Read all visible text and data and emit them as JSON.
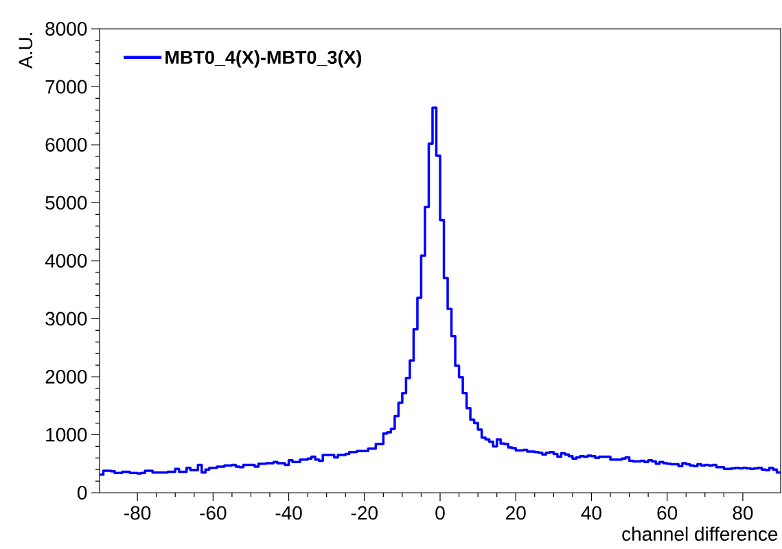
{
  "chart_data": {
    "type": "histogram",
    "xlabel": "channel difference",
    "ylabel": "A.U.",
    "bins": [
      -90,
      -89,
      -88,
      -87,
      -86,
      -85,
      -84,
      -83,
      -82,
      -81,
      -80,
      -79,
      -78,
      -77,
      -76,
      -75,
      -74,
      -73,
      -72,
      -71,
      -70,
      -69,
      -68,
      -67,
      -66,
      -65,
      -64,
      -63,
      -62,
      -61,
      -60,
      -59,
      -58,
      -57,
      -56,
      -55,
      -54,
      -53,
      -52,
      -51,
      -50,
      -49,
      -48,
      -47,
      -46,
      -45,
      -44,
      -43,
      -42,
      -41,
      -40,
      -39,
      -38,
      -37,
      -36,
      -35,
      -34,
      -33,
      -32,
      -31,
      -30,
      -29,
      -28,
      -27,
      -26,
      -25,
      -24,
      -23,
      -22,
      -21,
      -20,
      -19,
      -18,
      -17,
      -16,
      -15,
      -14,
      -13,
      -12,
      -11,
      -10,
      -9,
      -8,
      -7,
      -6,
      -5,
      -4,
      -3,
      -2,
      -1,
      0,
      1,
      2,
      3,
      4,
      5,
      6,
      7,
      8,
      9,
      10,
      11,
      12,
      13,
      14,
      15,
      16,
      17,
      18,
      19,
      20,
      21,
      22,
      23,
      24,
      25,
      26,
      27,
      28,
      29,
      30,
      31,
      32,
      33,
      34,
      35,
      36,
      37,
      38,
      39,
      40,
      41,
      42,
      43,
      44,
      45,
      46,
      47,
      48,
      49,
      50,
      51,
      52,
      53,
      54,
      55,
      56,
      57,
      58,
      59,
      60,
      61,
      62,
      63,
      64,
      65,
      66,
      67,
      68,
      69,
      70,
      71,
      72,
      73,
      74,
      75,
      76,
      77,
      78,
      79,
      80,
      81,
      82,
      83,
      84,
      85,
      86,
      87,
      88,
      89,
      90
    ],
    "series": [
      {
        "name": "MBT0_4(X)-MBT0_3(X)",
        "color": "#0000ff",
        "values": [
          310,
          380,
          380,
          370,
          340,
          340,
          360,
          360,
          340,
          340,
          330,
          340,
          380,
          380,
          350,
          350,
          350,
          350,
          360,
          360,
          410,
          360,
          360,
          430,
          390,
          390,
          480,
          350,
          400,
          430,
          430,
          450,
          450,
          470,
          470,
          480,
          450,
          440,
          480,
          480,
          480,
          450,
          500,
          500,
          510,
          510,
          530,
          510,
          510,
          480,
          560,
          530,
          530,
          570,
          570,
          590,
          620,
          570,
          550,
          650,
          650,
          650,
          610,
          650,
          650,
          670,
          700,
          700,
          720,
          720,
          720,
          760,
          760,
          840,
          840,
          1020,
          1040,
          1100,
          1320,
          1550,
          1720,
          1980,
          2280,
          2820,
          3360,
          4090,
          4930,
          6020,
          6640,
          5810,
          4700,
          3700,
          3170,
          2700,
          2190,
          1990,
          1720,
          1460,
          1260,
          1200,
          1090,
          950,
          920,
          880,
          800,
          920,
          850,
          840,
          780,
          770,
          730,
          730,
          740,
          710,
          710,
          700,
          690,
          660,
          690,
          700,
          670,
          620,
          680,
          660,
          630,
          590,
          610,
          630,
          620,
          640,
          630,
          600,
          620,
          620,
          620,
          570,
          570,
          570,
          590,
          610,
          550,
          540,
          540,
          550,
          530,
          560,
          540,
          500,
          530,
          510,
          500,
          490,
          490,
          460,
          510,
          490,
          470,
          460,
          490,
          470,
          480,
          470,
          480,
          440,
          440,
          410,
          410,
          420,
          430,
          420,
          430,
          420,
          410,
          420,
          430,
          400,
          390,
          430,
          400,
          350
        ]
      }
    ],
    "xlim": [
      -90,
      90
    ],
    "ylim": [
      0,
      8000
    ],
    "xticks": [
      -80,
      -60,
      -40,
      -20,
      0,
      20,
      40,
      60,
      80
    ],
    "yticks": [
      0,
      1000,
      2000,
      3000,
      4000,
      5000,
      6000,
      7000,
      8000
    ],
    "legend": "top left",
    "grid": false
  }
}
